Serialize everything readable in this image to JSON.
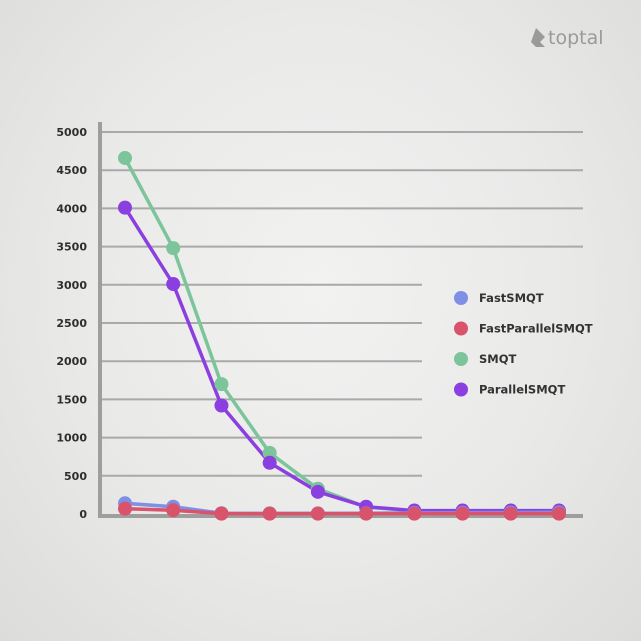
{
  "brand": {
    "name": "toptal",
    "icon": "toptal-logo-icon"
  },
  "chart_data": {
    "type": "line",
    "x": [
      1,
      2,
      3,
      4,
      5,
      6,
      7,
      8,
      9,
      10
    ],
    "ylim": [
      0,
      5000
    ],
    "yticks": [
      0,
      500,
      1000,
      1500,
      2000,
      2500,
      3000,
      3500,
      4000,
      4500,
      5000
    ],
    "grid": true,
    "legend_position": "right",
    "series": [
      {
        "name": "FastSMQT",
        "color": "#7f8fe6",
        "values": [
          140,
          95,
          10,
          8,
          8,
          10,
          15,
          18,
          20,
          22
        ]
      },
      {
        "name": "FastParallelSMQT",
        "color": "#d9536a",
        "values": [
          70,
          50,
          5,
          5,
          5,
          5,
          5,
          5,
          5,
          5
        ]
      },
      {
        "name": "SMQT",
        "color": "#7cc49a",
        "values": [
          4660,
          3480,
          1700,
          800,
          330,
          90,
          40,
          40,
          40,
          40
        ]
      },
      {
        "name": "ParallelSMQT",
        "color": "#8b3fe0",
        "values": [
          4010,
          3010,
          1420,
          670,
          290,
          95,
          45,
          45,
          45,
          45
        ]
      }
    ]
  }
}
